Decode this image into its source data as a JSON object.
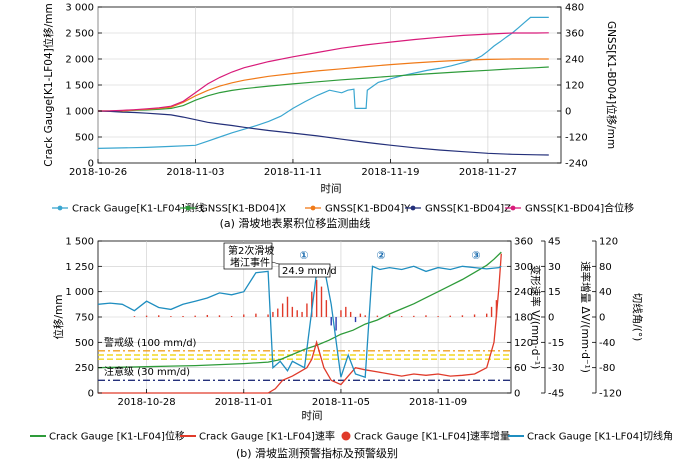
{
  "chart_data": [
    {
      "type": "line",
      "title": "滑坡地表累积位移监测曲线",
      "caption": "(a) 滑坡地表累积位移监测曲线",
      "xlabel": "时间",
      "ylabel_left": "Crack Gauge[K1-LF04]位移/mm",
      "ylabel_right": "GNSS[K1-BD04]位移/mm",
      "x_range": [
        "2018-10-26",
        "2018-12-03"
      ],
      "x_ticks": [
        "2018-10-26",
        "2018-11-03",
        "2018-11-11",
        "2018-11-19",
        "2018-11-27"
      ],
      "y_left_range": [
        0,
        3000
      ],
      "y_left_ticks": [
        "0",
        "500",
        "1 000",
        "1 500",
        "2 000",
        "2 500",
        "3 000"
      ],
      "y_right_range": [
        -240,
        480
      ],
      "y_right_ticks": [
        "-240",
        "-120",
        "0",
        "120",
        "240",
        "360",
        "480"
      ],
      "legend": [
        "Crack Gauge[K1-LF04]测线",
        "GNSS[K1-BD04]X",
        "GNSS[K1-BD04]Y",
        "GNSS[K1-BD04]Z",
        "GNSS[K1-BD04]合位移"
      ],
      "series": [
        {
          "name": "Crack Gauge[K1-LF04]测线",
          "axis": "left",
          "color": "#3aa6d0",
          "x": [
            0,
            2,
            4,
            6,
            8,
            9,
            10,
            11,
            12,
            13,
            14,
            15,
            16,
            17,
            18,
            19,
            20,
            20.5,
            21,
            21.1,
            22,
            22.1,
            23,
            24,
            25,
            26,
            27,
            28,
            29,
            30,
            31,
            31.5,
            32,
            32.5,
            33,
            33.5,
            34,
            34.5,
            35,
            35.5,
            36,
            37
          ],
          "values": [
            280,
            290,
            300,
            320,
            340,
            420,
            500,
            580,
            650,
            720,
            800,
            900,
            1050,
            1180,
            1300,
            1400,
            1350,
            1400,
            1420,
            1050,
            1050,
            1400,
            1550,
            1620,
            1680,
            1730,
            1780,
            1820,
            1870,
            1930,
            2000,
            2060,
            2150,
            2250,
            2330,
            2420,
            2500,
            2600,
            2700,
            2800,
            2800,
            2800
          ]
        },
        {
          "name": "GNSS[K1-BD04]X",
          "axis": "right",
          "color": "#2e9b3a",
          "x": [
            0,
            1,
            2,
            3,
            4,
            5,
            6,
            7,
            8,
            9,
            10,
            11,
            12,
            14,
            16,
            18,
            20,
            22,
            24,
            26,
            28,
            30,
            32,
            34,
            36,
            37
          ],
          "values": [
            0,
            0,
            0,
            3,
            5,
            8,
            12,
            25,
            50,
            70,
            85,
            95,
            103,
            115,
            125,
            135,
            144,
            152,
            160,
            168,
            175,
            182,
            188,
            195,
            200,
            203
          ]
        },
        {
          "name": "GNSS[K1-BD04]Y",
          "axis": "right",
          "color": "#f07a18",
          "x": [
            0,
            1,
            2,
            3,
            4,
            5,
            6,
            7,
            8,
            9,
            10,
            11,
            12,
            14,
            16,
            18,
            20,
            22,
            24,
            26,
            28,
            30,
            32,
            34,
            36,
            37
          ],
          "values": [
            0,
            0,
            0,
            5,
            8,
            12,
            18,
            40,
            70,
            95,
            115,
            130,
            142,
            160,
            173,
            185,
            195,
            205,
            214,
            222,
            229,
            235,
            238,
            240,
            240,
            240
          ]
        },
        {
          "name": "GNSS[K1-BD04]Z",
          "axis": "right",
          "color": "#24307a",
          "x": [
            0,
            1,
            2,
            3,
            4,
            5,
            6,
            7,
            8,
            9,
            10,
            11,
            12,
            14,
            16,
            18,
            20,
            22,
            24,
            26,
            28,
            30,
            32,
            34,
            36,
            37
          ],
          "values": [
            0,
            -2,
            -5,
            -7,
            -10,
            -14,
            -18,
            -28,
            -40,
            -52,
            -60,
            -67,
            -75,
            -90,
            -102,
            -115,
            -130,
            -145,
            -158,
            -170,
            -180,
            -188,
            -195,
            -200,
            -202,
            -203
          ]
        },
        {
          "name": "GNSS[K1-BD04]合位移",
          "axis": "right",
          "color": "#d81b7a",
          "x": [
            0,
            1,
            2,
            3,
            4,
            5,
            6,
            7,
            8,
            9,
            10,
            11,
            12,
            14,
            16,
            18,
            20,
            22,
            24,
            26,
            28,
            30,
            32,
            34,
            36,
            37
          ],
          "values": [
            0,
            1,
            3,
            6,
            10,
            15,
            22,
            45,
            85,
            125,
            155,
            180,
            200,
            228,
            250,
            270,
            290,
            305,
            318,
            330,
            340,
            349,
            355,
            360,
            360,
            361
          ]
        }
      ]
    },
    {
      "type": "line",
      "title": "滑坡监测预警指标及预警级别",
      "caption": "(b) 滑坡监测预警指标及预警级别",
      "xlabel": "时间",
      "ylabel_left": "位移/mm",
      "ylabel_right1": "变形速率 V/(mm·d⁻¹)",
      "ylabel_right2": "速率增量 ΔV/(mm·d⁻¹)",
      "ylabel_right3": "切线角/(°)",
      "x_range": [
        "2018-10-26",
        "2018-11-12"
      ],
      "x_ticks": [
        "2018-10-28",
        "2018-11-01",
        "2018-11-05",
        "2018-11-09"
      ],
      "y_left_range": [
        0,
        1500
      ],
      "y_left_ticks": [
        "0",
        "250",
        "500",
        "750",
        "1 000",
        "1 250",
        "1 500"
      ],
      "y_r1_range": [
        0,
        360
      ],
      "y_r1_ticks": [
        "0",
        "60",
        "120",
        "180",
        "240",
        "300",
        "360"
      ],
      "y_r2_range": [
        -45,
        45
      ],
      "y_r2_ticks": [
        "-45",
        "-30",
        "-15",
        "0",
        "15",
        "30",
        "45"
      ],
      "y_r3_range": [
        -120,
        120
      ],
      "y_r3_ticks": [
        "-120",
        "-80",
        "-40",
        "0",
        "40",
        "80",
        "120"
      ],
      "legend": [
        "Crack Gauge [K1-LF04]位移",
        "Crack Gauge [K1-LF04]速率",
        "Crack Gauge [K1-LF04]速率增量",
        "Crack Gauge [K1-LF04]切线角"
      ],
      "thresholds": [
        {
          "label": "警戒级 (100 mm/d)",
          "value": 100,
          "color": "#f0a020"
        },
        {
          "label": "注意级 (30 mm/d)",
          "value": 30,
          "color": "#24307a"
        }
      ],
      "annotations": [
        "第2次滑坡堵江事件",
        "24.9 mm/d",
        "①",
        "②",
        "③"
      ],
      "series": [
        {
          "name": "Crack Gauge [K1-LF04]位移",
          "axis": "left",
          "color": "#2e9b3a",
          "x": [
            0,
            1,
            2,
            3,
            4,
            5,
            6,
            7,
            7.5,
            8,
            8.5,
            9,
            9.5,
            10,
            10.5,
            11,
            11.5,
            12,
            12.5,
            13,
            13.5,
            14,
            14.5,
            15,
            15.5,
            16,
            16.3,
            16.6
          ],
          "values": [
            250,
            255,
            260,
            265,
            270,
            280,
            290,
            305,
            330,
            380,
            430,
            470,
            520,
            580,
            620,
            680,
            720,
            780,
            830,
            880,
            940,
            1000,
            1060,
            1120,
            1190,
            1260,
            1320,
            1390
          ]
        },
        {
          "name": "Crack Gauge [K1-LF04]速率",
          "axis": "r1",
          "color": "#e03a2a",
          "x": [
            0,
            1,
            2,
            3,
            4,
            5,
            6,
            7,
            7.3,
            7.6,
            8,
            8.3,
            8.6,
            8.8,
            9,
            9.3,
            9.6,
            10,
            10.3,
            10.6,
            11,
            11.5,
            12,
            12.5,
            13,
            13.5,
            14,
            14.5,
            15,
            15.5,
            16,
            16.3,
            16.5,
            16.6
          ],
          "values": [
            0,
            0,
            0,
            0,
            0,
            0,
            0,
            0,
            10,
            30,
            40,
            50,
            60,
            80,
            120,
            60,
            30,
            20,
            40,
            60,
            55,
            50,
            45,
            40,
            45,
            42,
            45,
            40,
            42,
            45,
            60,
            120,
            250,
            330
          ]
        },
        {
          "name": "Crack Gauge [K1-LF04]切线角",
          "axis": "r3",
          "color": "#1f8ec0",
          "x": [
            0,
            0.5,
            1,
            1.5,
            2,
            2.5,
            3,
            3.5,
            4,
            4.5,
            5,
            5.5,
            6,
            6.5,
            7,
            7.2,
            7.5,
            7.8,
            8,
            8.5,
            9,
            9.3,
            9.6,
            10,
            10.3,
            10.6,
            11,
            11.3,
            11.6,
            12,
            12.5,
            13,
            13.5,
            14,
            14.5,
            15,
            15.5,
            16,
            16.5,
            16.6
          ],
          "values": [
            20,
            22,
            20,
            10,
            25,
            15,
            12,
            20,
            25,
            30,
            38,
            35,
            40,
            70,
            72,
            -80,
            -70,
            -85,
            -70,
            -80,
            70,
            80,
            20,
            -95,
            -60,
            -90,
            -95,
            80,
            75,
            78,
            75,
            80,
            72,
            78,
            75,
            80,
            78,
            76,
            78,
            80
          ]
        }
      ],
      "bars": {
        "name": "Crack Gauge [K1-LF04]速率增量",
        "axis": "r2",
        "color_pos": "#e03a2a",
        "color_neg": "#2a3ab0",
        "x": [
          1.5,
          2,
          2.5,
          3,
          3.5,
          4,
          4.5,
          5,
          5.5,
          6,
          6.5,
          7,
          7.2,
          7.4,
          7.6,
          7.8,
          8,
          8.2,
          8.4,
          8.6,
          8.8,
          9,
          9.2,
          9.4,
          9.6,
          9.8,
          10,
          10.2,
          10.4,
          10.6,
          10.8,
          11,
          11.5,
          12,
          12.5,
          13,
          13.5,
          14,
          14.5,
          15,
          15.5,
          16,
          16.2,
          16.4
        ],
        "values": [
          0.5,
          0.8,
          1,
          0.5,
          0.6,
          0.8,
          1.2,
          1,
          0.6,
          1.5,
          2,
          1.5,
          3,
          5,
          8,
          12,
          6,
          4,
          3,
          8,
          15,
          22,
          18,
          10,
          -5,
          -8,
          4,
          6,
          3,
          -3,
          2,
          1,
          0.8,
          1,
          0.5,
          0.7,
          1,
          0.5,
          0.8,
          1,
          1.5,
          2,
          6,
          10
        ]
      }
    }
  ]
}
